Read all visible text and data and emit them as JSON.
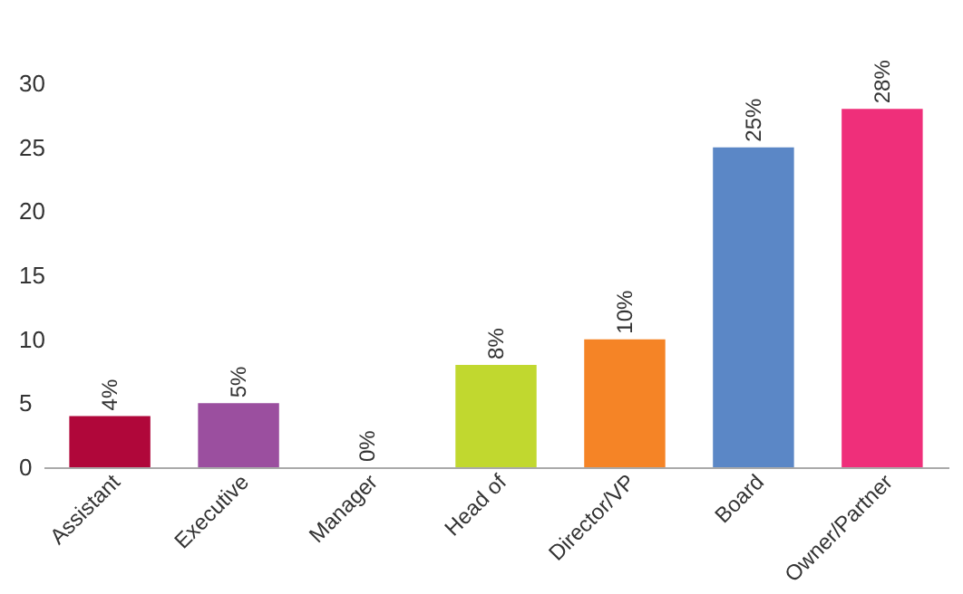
{
  "chart_data": {
    "type": "bar",
    "categories": [
      "Assistant",
      "Executive",
      "Manager",
      "Head of",
      "Director/VP",
      "Board",
      "Owner/Partner"
    ],
    "values": [
      4,
      5,
      0,
      8,
      10,
      25,
      28
    ],
    "colors": [
      "#b0073a",
      "#9b4f9f",
      "#c0c0c0",
      "#c1d82f",
      "#f58426",
      "#5b87c6",
      "#ef2f7a"
    ],
    "value_labels": [
      "4%",
      "5%",
      "0%",
      "8%",
      "10%",
      "25%",
      "28%"
    ],
    "ylim": [
      0,
      30
    ],
    "yticks": [
      0,
      5,
      10,
      15,
      20,
      25,
      30
    ],
    "grid": false,
    "legend": false
  }
}
